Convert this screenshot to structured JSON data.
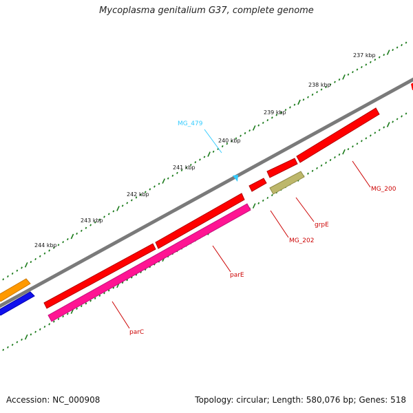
{
  "title": "Mycoplasma genitalium G37, complete genome",
  "footer": {
    "accession": "Accession: NC_000908",
    "stats": "Topology: circular; Length: 580,076 bp; Genes: 518"
  },
  "scale_labels": [
    "237 kbp",
    "238 kbp",
    "239 kbp",
    "240 kbp",
    "241 kbp",
    "242 kbp",
    "243 kbp",
    "244 kbp"
  ],
  "gene_labels": [
    "MG_479",
    "MG_200",
    "grpE",
    "MG_202",
    "parE",
    "parC"
  ],
  "colors": {
    "backbone": "#7a7a7a",
    "forward_gene": "#ff0000",
    "reverse_gene": "#ff1493",
    "grpE": "#bdb76b",
    "trna": "#33ccff",
    "tick": "#1a7a1a",
    "label_gene": "#cc0000",
    "label_trna": "#33ccff",
    "orange_feature": "#ff9900",
    "blue_feature": "#0000ff"
  }
}
